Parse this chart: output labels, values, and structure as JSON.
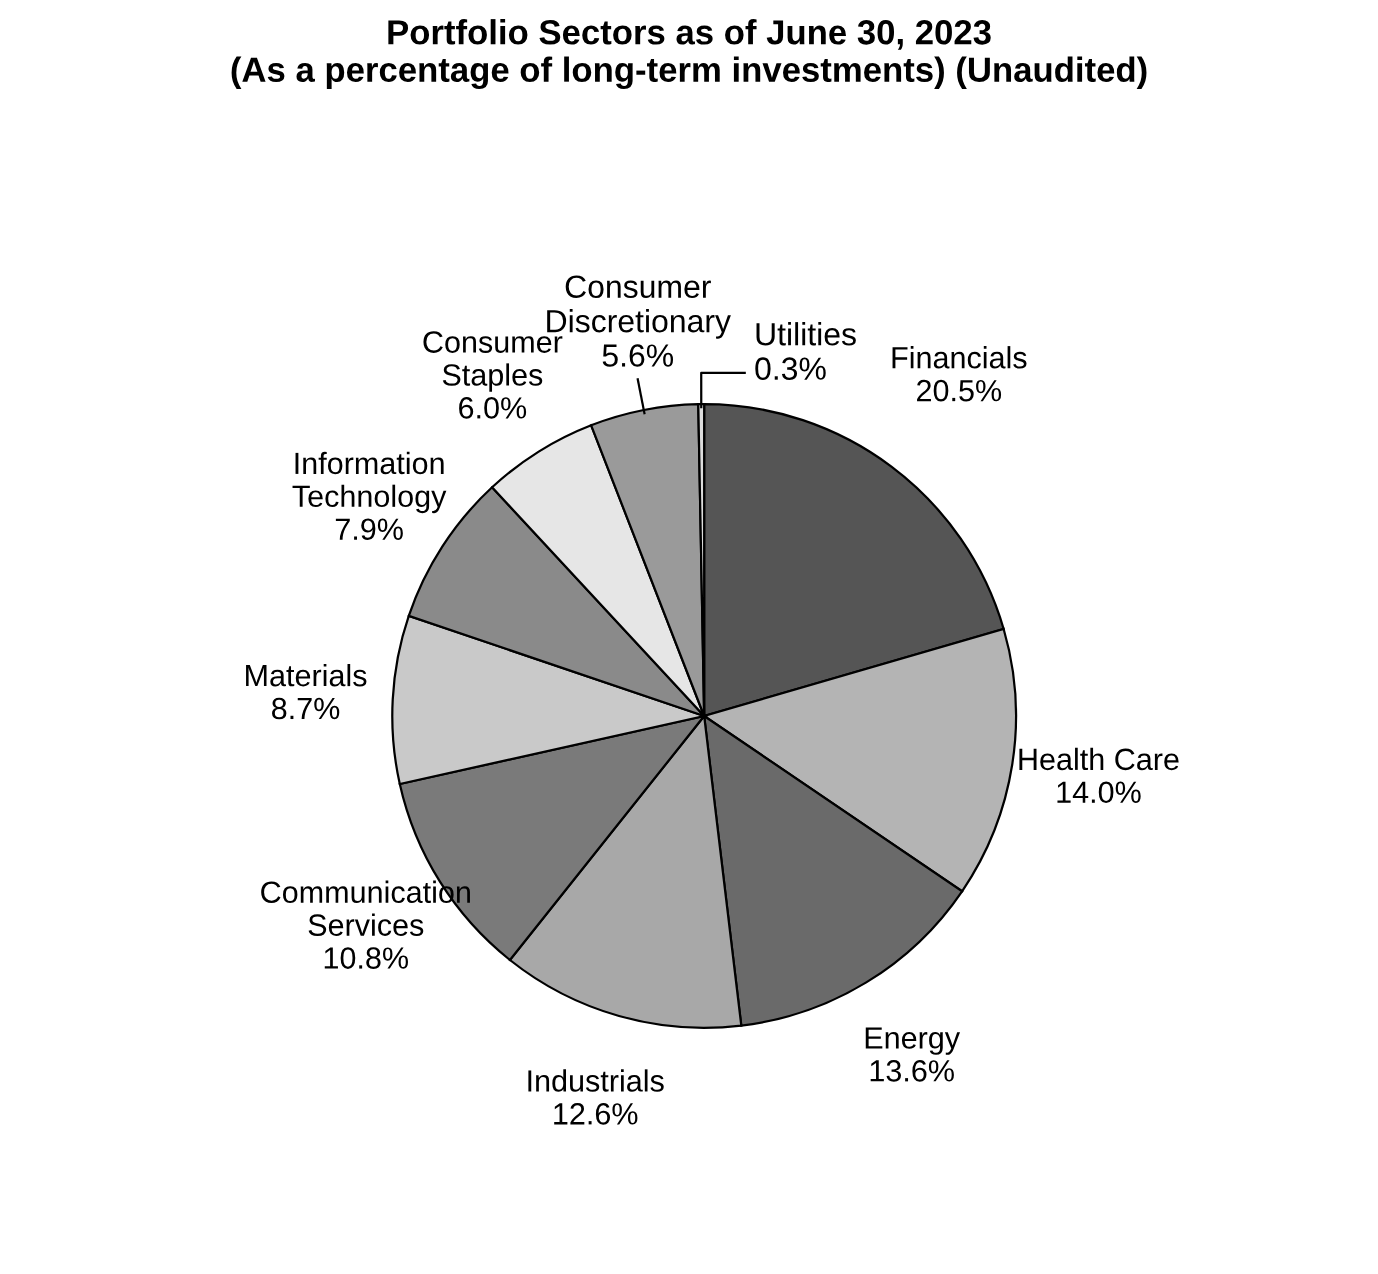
{
  "chart_data": {
    "type": "pie",
    "title": "Portfolio Sectors as of June 30, 2023\n(As a percentage of long-term investments) (Unaudited)",
    "categories": [
      "Financials",
      "Health Care",
      "Energy",
      "Industrials",
      "Communication\nServices",
      "Materials",
      "Information\nTechnology",
      "Consumer\nStaples",
      "Consumer\nDiscretionary",
      "Utilities"
    ],
    "values": [
      20.5,
      14.0,
      13.6,
      12.6,
      10.8,
      8.7,
      7.9,
      6.0,
      5.6,
      0.3
    ],
    "value_labels": [
      "20.5%",
      "14.0%",
      "13.6%",
      "12.6%",
      "10.8%",
      "8.7%",
      "7.9%",
      "6.0%",
      "5.6%",
      "0.3%"
    ],
    "colors": [
      "#555555",
      "#b4b4b4",
      "#6a6a6a",
      "#a8a8a8",
      "#7a7a7a",
      "#c9c9c9",
      "#8a8a8a",
      "#e6e6e6",
      "#9a9a9a",
      "#dcdcdc"
    ]
  }
}
